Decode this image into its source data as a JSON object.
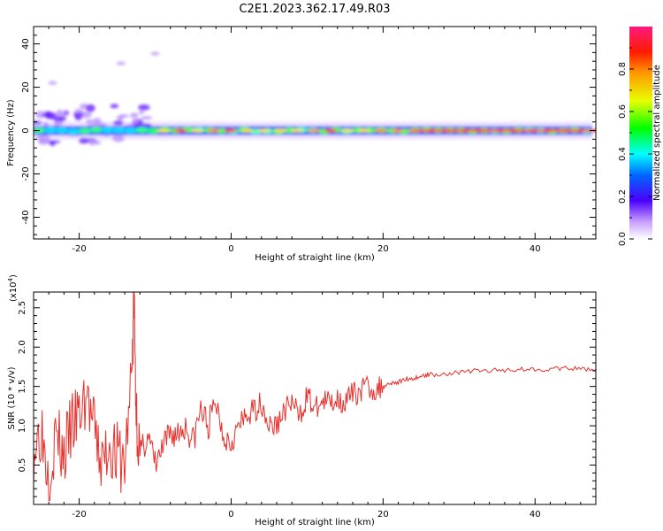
{
  "title": "C2E1.2023.362.17.49.R03",
  "chart_data": [
    {
      "type": "heatmap",
      "xlabel": "Height of straight line (km)",
      "ylabel": "Frequency (Hz)",
      "xlim": [
        -26,
        48
      ],
      "ylim": [
        -50,
        48
      ],
      "xticks": [
        -20,
        0,
        20,
        40
      ],
      "yticks": [
        -40,
        -20,
        0,
        20,
        40
      ],
      "colorbar": {
        "label": "Normalized spectral amplitude",
        "range": [
          0.0,
          1.0
        ],
        "ticks": [
          0.0,
          0.2,
          0.4,
          0.6,
          0.8
        ]
      },
      "band_center_hz": 0,
      "signal_starts_km": -26,
      "signal_ends_km": 47.5
    },
    {
      "type": "line",
      "xlabel": "Height of straight line (km)",
      "ylabel": "SNR (10 * v/v)",
      "scale_label": "(x10",
      "scale_exp": "4",
      "scale_close": ")",
      "xlim": [
        -26,
        48
      ],
      "ylim": [
        0.0,
        2.7
      ],
      "xticks": [
        -20,
        0,
        20,
        40
      ],
      "yticks": [
        0.5,
        1.0,
        1.5,
        2.0,
        2.5
      ],
      "series": [
        {
          "color": "#e8302c",
          "x": [
            -26,
            -25,
            -24,
            -23,
            -22,
            -21,
            -20,
            -19,
            -18,
            -17,
            -16,
            -15,
            -14,
            -13,
            -12.8,
            -12.5,
            -12,
            -11,
            -10,
            -9,
            -8,
            -7,
            -6,
            -5,
            -4,
            -3,
            -2,
            -1,
            0,
            1,
            2,
            3,
            4,
            5,
            6,
            7,
            8,
            9,
            10,
            11,
            12,
            13,
            14,
            15,
            16,
            17,
            18,
            19,
            20,
            21,
            22,
            23,
            24,
            25,
            26,
            28,
            30,
            32,
            34,
            36,
            38,
            40,
            42,
            44,
            46,
            48
          ],
          "y": [
            0.7,
            1.0,
            0.4,
            0.9,
            0.6,
            1.0,
            1.1,
            1.4,
            0.9,
            0.5,
            0.8,
            0.6,
            0.5,
            1.8,
            2.7,
            1.2,
            0.6,
            0.9,
            0.5,
            0.7,
            0.9,
            0.9,
            1.0,
            0.8,
            1.2,
            1.0,
            1.3,
            0.9,
            0.8,
            1.0,
            1.1,
            1.2,
            1.3,
            1.0,
            1.0,
            1.2,
            1.3,
            1.1,
            1.4,
            1.2,
            1.3,
            1.3,
            1.35,
            1.3,
            1.4,
            1.45,
            1.5,
            1.45,
            1.5,
            1.55,
            1.55,
            1.6,
            1.6,
            1.63,
            1.65,
            1.66,
            1.68,
            1.7,
            1.7,
            1.71,
            1.72,
            1.72,
            1.72,
            1.73,
            1.72,
            1.72
          ]
        }
      ]
    }
  ]
}
